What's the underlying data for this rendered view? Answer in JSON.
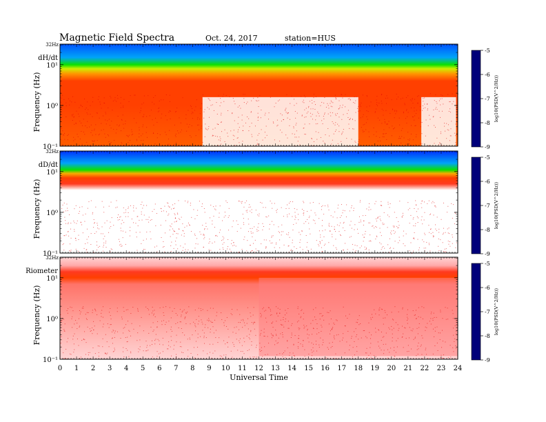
{
  "header": {
    "title": "Magnetic  Field  Spectra",
    "date": "Oct. 24, 2017",
    "station": "station=HUS"
  },
  "colors": {
    "colormap": [
      "#00007a",
      "#0000ff",
      "#0090ff",
      "#00e0e0",
      "#00e000",
      "#d8f000",
      "#ffa000",
      "#ff2000",
      "#ffa0a0",
      "#ffffff"
    ]
  },
  "chart_data": [
    {
      "type": "heatmap",
      "panel_label": "dH/dt",
      "ylabel": "Frequency  (Hz)",
      "y_top_label": "32Hz",
      "y_ticks": [
        {
          "value": 0.1,
          "mantissa": "10",
          "exp": "-1"
        },
        {
          "value": 1,
          "mantissa": "10",
          "exp": "0"
        },
        {
          "value": 10,
          "mantissa": "10",
          "exp": "1"
        }
      ],
      "y_range_hz": [
        0.1,
        32
      ],
      "x_range_ut": [
        0,
        24
      ],
      "colorbar": {
        "label": "log10(PSD(V^2/Hz))",
        "ticks": [
          "-5",
          "-6",
          "-7",
          "-8",
          "-9"
        ],
        "range": [
          -9,
          -5
        ]
      },
      "profile": [
        {
          "freq_hz": 32,
          "log_psd": -8.3
        },
        {
          "freq_hz": 15,
          "log_psd": -8.0
        },
        {
          "freq_hz": 10,
          "log_psd": -7.2
        },
        {
          "freq_hz": 8,
          "log_psd": -6.8
        },
        {
          "freq_hz": 6,
          "log_psd": -6.3
        },
        {
          "freq_hz": 4,
          "log_psd": -6.0
        },
        {
          "freq_hz": 1,
          "log_psd": -6.0
        },
        {
          "freq_hz": 0.1,
          "log_psd": -6.1
        }
      ],
      "quiet_intervals_ut": [
        [
          8.6,
          12.0
        ],
        [
          12.0,
          18.0
        ],
        [
          21.8,
          23.9
        ]
      ]
    },
    {
      "type": "heatmap",
      "panel_label": "dD/dt",
      "ylabel": "Frequency  (Hz)",
      "y_top_label": "32Hz",
      "y_ticks": [
        {
          "value": 0.1,
          "mantissa": "10",
          "exp": "-1"
        },
        {
          "value": 1,
          "mantissa": "10",
          "exp": "0"
        },
        {
          "value": 10,
          "mantissa": "10",
          "exp": "1"
        }
      ],
      "y_range_hz": [
        0.1,
        32
      ],
      "x_range_ut": [
        0,
        24
      ],
      "colorbar": {
        "label": "log10(PSD(V^2/Hz))",
        "ticks": [
          "-5",
          "-6",
          "-7",
          "-8",
          "-9"
        ],
        "range": [
          -9,
          -5
        ]
      },
      "profile": [
        {
          "freq_hz": 32,
          "log_psd": -8.4
        },
        {
          "freq_hz": 16,
          "log_psd": -8.0
        },
        {
          "freq_hz": 11,
          "log_psd": -7.2
        },
        {
          "freq_hz": 9,
          "log_psd": -6.4
        },
        {
          "freq_hz": 7,
          "log_psd": -6.0
        },
        {
          "freq_hz": 5,
          "log_psd": -5.8
        },
        {
          "freq_hz": 3.5,
          "log_psd": -4.8
        },
        {
          "freq_hz": 0.1,
          "log_psd": -4.6
        }
      ]
    },
    {
      "type": "heatmap",
      "panel_label": "Riometer",
      "ylabel": "Frequency  (Hz)",
      "y_top_label": "32Hz",
      "y_ticks": [
        {
          "value": 0.1,
          "mantissa": "10",
          "exp": "-1"
        },
        {
          "value": 1,
          "mantissa": "10",
          "exp": "0"
        },
        {
          "value": 10,
          "mantissa": "10",
          "exp": "1"
        }
      ],
      "y_range_hz": [
        0.1,
        32
      ],
      "x_range_ut": [
        0,
        24
      ],
      "colorbar": {
        "label": "log10(PSD(V^2/Hz))",
        "ticks": [
          "-5",
          "-6",
          "-7",
          "-8",
          "-9"
        ],
        "range": [
          -9,
          -5
        ]
      },
      "profile": [
        {
          "freq_hz": 32,
          "log_psd": -5.2
        },
        {
          "freq_hz": 20,
          "log_psd": -5.4
        },
        {
          "freq_hz": 14,
          "log_psd": -5.8
        },
        {
          "freq_hz": 10,
          "log_psd": -6.0
        },
        {
          "freq_hz": 7,
          "log_psd": -5.6
        },
        {
          "freq_hz": 0.1,
          "log_psd": -5.2
        }
      ],
      "active_intervals_ut": [
        [
          12.0,
          24.0
        ]
      ]
    }
  ],
  "x_axis": {
    "label": "Universal Time",
    "ticks": [
      "0",
      "1",
      "2",
      "3",
      "4",
      "5",
      "6",
      "7",
      "8",
      "9",
      "10",
      "11",
      "12",
      "13",
      "14",
      "15",
      "16",
      "17",
      "18",
      "19",
      "20",
      "21",
      "22",
      "23",
      "24"
    ]
  }
}
